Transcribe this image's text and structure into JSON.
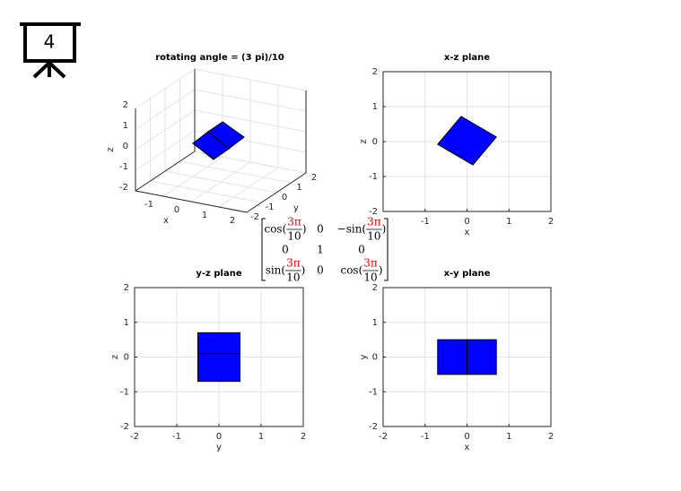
{
  "icon_label": "4",
  "matrix": {
    "rows": [
      [
        {
          "pre": "cos(",
          "num": "3π",
          "den": "10",
          "post": ")"
        },
        "0",
        {
          "pre": "−sin(",
          "num": "3π",
          "den": "10",
          "post": ")"
        }
      ],
      [
        "0",
        "1",
        "0"
      ],
      [
        {
          "pre": "sin(",
          "num": "3π",
          "den": "10",
          "post": ")"
        },
        "0",
        {
          "pre": "cos(",
          "num": "3π",
          "den": "10",
          "post": ")"
        }
      ]
    ]
  },
  "chart_data": [
    {
      "type": "patch3d",
      "title": "rotating angle = (3 pi)/10",
      "xlabel": "x",
      "ylabel": "y",
      "zlabel": "z",
      "xlim": [
        -2,
        2
      ],
      "ylim": [
        -2,
        2
      ],
      "zlim": [
        -2,
        2
      ],
      "xticks": [
        -1,
        0,
        1,
        2
      ],
      "yticks": [
        -2,
        -1,
        0,
        1,
        2
      ],
      "zticks": [
        -2,
        -1,
        0,
        1,
        2
      ],
      "grid": true,
      "color": "#0000ff",
      "patches": [
        {
          "x": [
            -1,
            -0.45,
            0.29,
            -0.26
          ],
          "y": [
            0,
            0,
            0,
            0
          ],
          "z": [
            -0.39,
            0.32,
            -0.32,
            -0.98
          ]
        },
        {
          "x": [
            -0.45,
            0.07,
            0.84,
            0.29
          ],
          "y": [
            0,
            0,
            0,
            0
          ],
          "z": [
            0.32,
            0.93,
            0.39,
            -0.32
          ]
        }
      ]
    },
    {
      "type": "patch",
      "title": "x-z plane",
      "xlabel": "x",
      "ylabel": "z",
      "xlim": [
        -2,
        2
      ],
      "ylim": [
        -2,
        2
      ],
      "xticks": [
        -1,
        0,
        1,
        2
      ],
      "yticks": [
        -2,
        -1,
        0,
        1,
        2
      ],
      "grid": true,
      "color": "#0000ff",
      "patches": [
        {
          "x": [
            -0.7,
            -0.14,
            0.7,
            0.14
          ],
          "y": [
            -0.08,
            0.72,
            0.13,
            -0.67
          ]
        }
      ]
    },
    {
      "type": "patch",
      "title": "y-z plane",
      "xlabel": "y",
      "ylabel": "z",
      "xlim": [
        -2,
        2
      ],
      "ylim": [
        -2,
        2
      ],
      "xticks": [
        -2,
        -1,
        0,
        1,
        2
      ],
      "yticks": [
        -2,
        -1,
        0,
        1,
        2
      ],
      "grid": true,
      "color": "#0000ff",
      "patches": [
        {
          "x": [
            -0.5,
            0.5,
            0.5,
            -0.5
          ],
          "y": [
            0.1,
            0.1,
            0.7,
            0.7
          ]
        },
        {
          "x": [
            -0.5,
            0.5,
            0.5,
            -0.5
          ],
          "y": [
            -0.7,
            -0.7,
            0.1,
            0.1
          ]
        }
      ]
    },
    {
      "type": "patch",
      "title": "x-y plane",
      "xlabel": "x",
      "ylabel": "y",
      "xlim": [
        -2,
        2
      ],
      "ylim": [
        -2,
        2
      ],
      "xticks": [
        -2,
        -1,
        0,
        1,
        2
      ],
      "yticks": [
        -2,
        -1,
        0,
        1,
        2
      ],
      "grid": true,
      "color": "#0000ff",
      "patches": [
        {
          "x": [
            -0.7,
            0,
            0,
            -0.7
          ],
          "y": [
            -0.5,
            -0.5,
            0.5,
            0.5
          ]
        },
        {
          "x": [
            0,
            0.7,
            0.7,
            0
          ],
          "y": [
            -0.5,
            -0.5,
            0.5,
            0.5
          ]
        }
      ]
    }
  ]
}
